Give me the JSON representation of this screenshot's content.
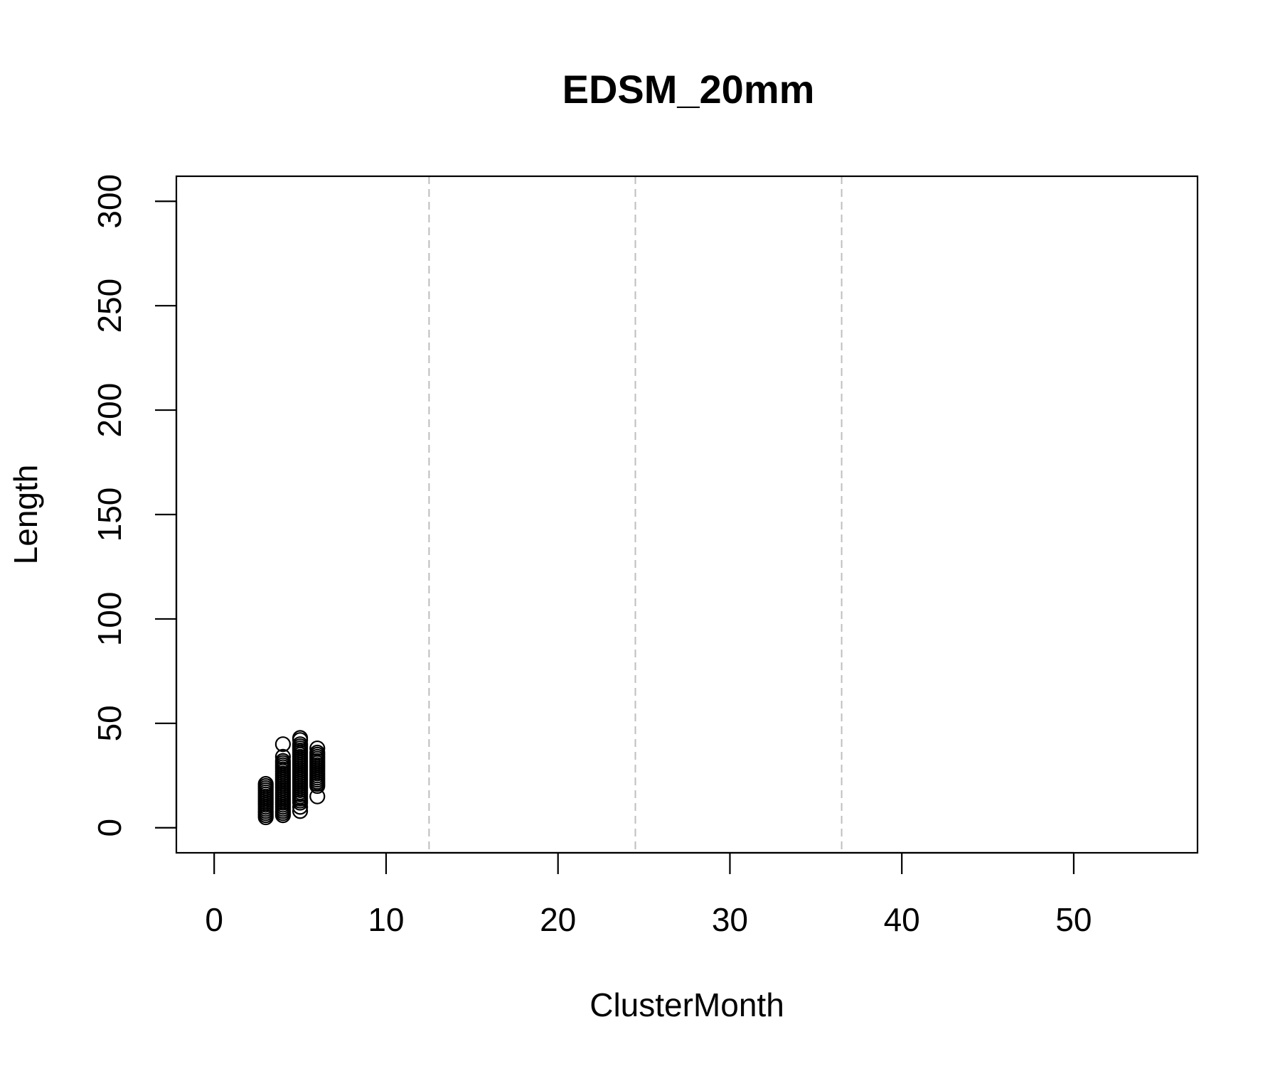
{
  "chart_data": {
    "type": "scatter",
    "title": "EDSM_20mm",
    "xlabel": "ClusterMonth",
    "ylabel": "Length",
    "xlim": [
      -2.2,
      57.2
    ],
    "ylim": [
      -12,
      312
    ],
    "x_ticks": [
      0,
      10,
      20,
      30,
      40,
      50
    ],
    "y_ticks": [
      0,
      50,
      100,
      150,
      200,
      250,
      300
    ],
    "grid": false,
    "legend": "none",
    "marker": "open-circle",
    "color": "#000000",
    "reference_lines": {
      "orientation": "vertical",
      "style": "dashed",
      "color": "#bebebe",
      "x": [
        12.5,
        24.5,
        36.5
      ]
    },
    "points": [
      [
        3,
        5
      ],
      [
        3,
        6
      ],
      [
        3,
        7
      ],
      [
        3,
        8
      ],
      [
        3,
        9
      ],
      [
        3,
        10
      ],
      [
        3,
        11
      ],
      [
        3,
        12
      ],
      [
        3,
        13
      ],
      [
        3,
        14
      ],
      [
        3,
        15
      ],
      [
        3,
        16
      ],
      [
        3,
        17
      ],
      [
        3,
        18
      ],
      [
        3,
        19
      ],
      [
        3,
        20
      ],
      [
        3,
        21
      ],
      [
        4,
        6
      ],
      [
        4,
        7
      ],
      [
        4,
        8
      ],
      [
        4,
        9
      ],
      [
        4,
        10
      ],
      [
        4,
        11
      ],
      [
        4,
        12
      ],
      [
        4,
        13
      ],
      [
        4,
        14
      ],
      [
        4,
        15
      ],
      [
        4,
        16
      ],
      [
        4,
        17
      ],
      [
        4,
        18
      ],
      [
        4,
        19
      ],
      [
        4,
        20
      ],
      [
        4,
        21
      ],
      [
        4,
        22
      ],
      [
        4,
        23
      ],
      [
        4,
        24
      ],
      [
        4,
        25
      ],
      [
        4,
        26
      ],
      [
        4,
        27
      ],
      [
        4,
        28
      ],
      [
        4,
        29
      ],
      [
        4,
        30
      ],
      [
        4,
        31
      ],
      [
        4,
        32
      ],
      [
        4,
        34
      ],
      [
        4,
        40
      ],
      [
        5,
        8
      ],
      [
        5,
        10
      ],
      [
        5,
        12
      ],
      [
        5,
        13
      ],
      [
        5,
        14
      ],
      [
        5,
        15
      ],
      [
        5,
        16
      ],
      [
        5,
        17
      ],
      [
        5,
        18
      ],
      [
        5,
        19
      ],
      [
        5,
        20
      ],
      [
        5,
        21
      ],
      [
        5,
        22
      ],
      [
        5,
        23
      ],
      [
        5,
        24
      ],
      [
        5,
        25
      ],
      [
        5,
        26
      ],
      [
        5,
        27
      ],
      [
        5,
        28
      ],
      [
        5,
        29
      ],
      [
        5,
        30
      ],
      [
        5,
        31
      ],
      [
        5,
        32
      ],
      [
        5,
        33
      ],
      [
        5,
        34
      ],
      [
        5,
        35
      ],
      [
        5,
        36
      ],
      [
        5,
        37
      ],
      [
        5,
        38
      ],
      [
        5,
        39
      ],
      [
        5,
        40
      ],
      [
        5,
        42
      ],
      [
        5,
        43
      ],
      [
        6,
        15
      ],
      [
        6,
        20
      ],
      [
        6,
        21
      ],
      [
        6,
        22
      ],
      [
        6,
        23
      ],
      [
        6,
        24
      ],
      [
        6,
        25
      ],
      [
        6,
        26
      ],
      [
        6,
        27
      ],
      [
        6,
        28
      ],
      [
        6,
        29
      ],
      [
        6,
        30
      ],
      [
        6,
        31
      ],
      [
        6,
        32
      ],
      [
        6,
        33
      ],
      [
        6,
        34
      ],
      [
        6,
        35
      ],
      [
        6,
        36
      ],
      [
        6,
        38
      ]
    ]
  }
}
